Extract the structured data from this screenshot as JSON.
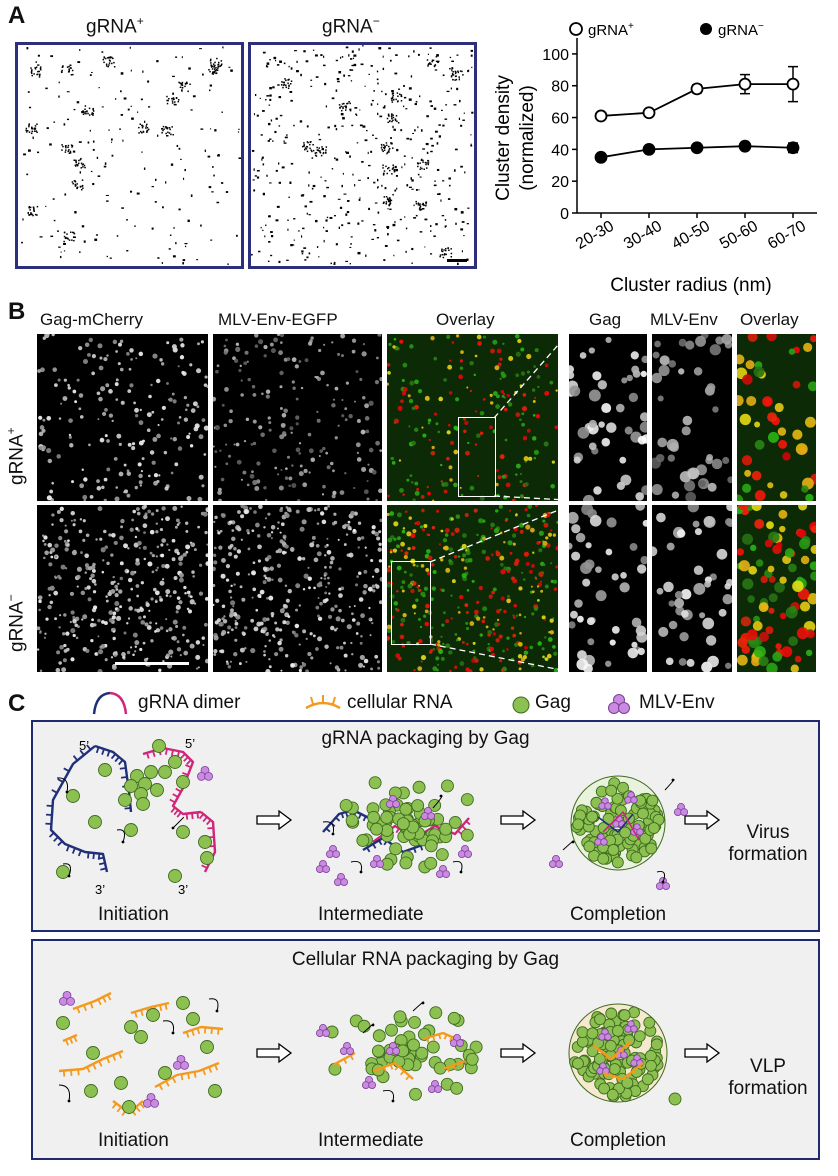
{
  "panel_a": {
    "label": "A",
    "img_titles": {
      "plus": "gRNA",
      "minus": "gRNA",
      "plus_sup": "+",
      "minus_sup": "−"
    },
    "chart_data": {
      "type": "line",
      "categories": [
        "20-30",
        "30-40",
        "40-50",
        "50-60",
        "60-70"
      ],
      "series": [
        {
          "name": "gRNA",
          "name_sup": "+",
          "marker": "open-circle",
          "values": [
            61,
            63,
            78,
            81,
            81
          ],
          "errors": [
            1.5,
            1.5,
            2.5,
            6,
            11
          ]
        },
        {
          "name": "gRNA",
          "name_sup": "−",
          "marker": "filled-circle",
          "values": [
            35,
            40,
            41,
            42,
            41
          ],
          "errors": [
            1,
            1,
            1,
            1,
            3
          ]
        }
      ],
      "xlabel": "Cluster radius (nm)",
      "ylabel": "Cluster density",
      "ylabel2": "(normalized)",
      "ylim": [
        0,
        110
      ],
      "yticks": [
        "0",
        "20",
        "40",
        "60",
        "80",
        "100"
      ],
      "legend": "top"
    }
  },
  "panel_b": {
    "label": "B",
    "col_titles": [
      "Gag-mCherry",
      "MLV-Env-EGFP",
      "Overlay",
      "Gag",
      "MLV-Env",
      "Overlay"
    ],
    "row_labels": [
      {
        "base": "gRNA",
        "sup": "+"
      },
      {
        "base": "gRNA",
        "sup": "−"
      }
    ]
  },
  "panel_c": {
    "label": "C",
    "legend": [
      "gRNA dimer",
      "cellular RNA",
      "Gag",
      "MLV-Env"
    ],
    "box1": {
      "title": "gRNA packaging by Gag",
      "stages": [
        "Initiation",
        "Intermediate",
        "Completion"
      ],
      "outcome": [
        "Virus",
        "formation"
      ],
      "ends": [
        "5’",
        "5’",
        "3’",
        "3’"
      ]
    },
    "box2": {
      "title": "Cellular RNA packaging by Gag",
      "stages": [
        "Initiation",
        "Intermediate",
        "Completion"
      ],
      "outcome": [
        "VLP",
        "formation"
      ]
    },
    "colors": {
      "gag": "#8cc152",
      "env": "#c98ae0",
      "grna_blue": "#1f2f78",
      "grna_pink": "#d0257a",
      "cellular": "#f39a1e"
    }
  }
}
